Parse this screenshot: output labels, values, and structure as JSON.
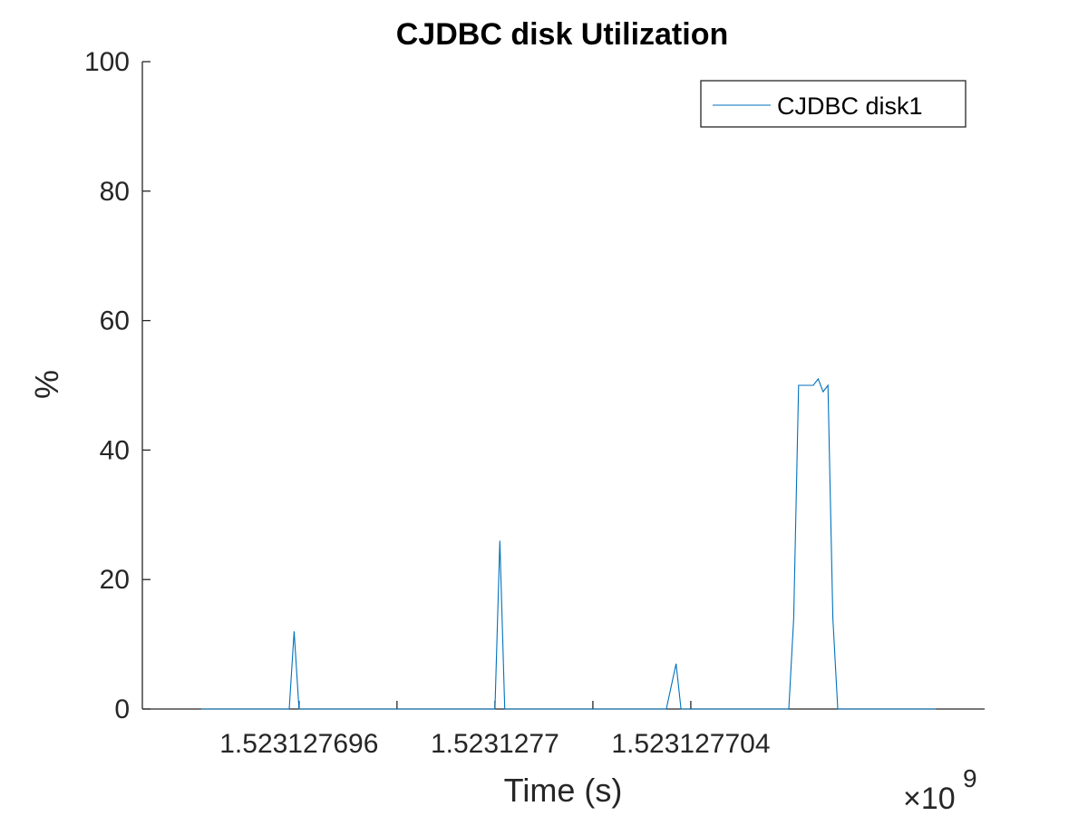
{
  "chart_data": {
    "type": "line",
    "title": "CJDBC disk Utilization",
    "xlabel": "Time (s)",
    "ylabel": "%",
    "x_exponent_label": "×10",
    "x_exponent_power": "9",
    "x_unit_scale": 1000000000,
    "xlim": [
      1.5231276928,
      1.52312771
    ],
    "ylim": [
      0,
      100
    ],
    "yticks": [
      0,
      20,
      40,
      60,
      80,
      100
    ],
    "ytick_labels": [
      "0",
      "20",
      "40",
      "60",
      "80",
      "100"
    ],
    "xticks": [
      1.523127696,
      1.5231277,
      1.523127704
    ],
    "xtick_labels": [
      "1.523127696",
      "1.5231277",
      "1.523127704"
    ],
    "grid": false,
    "legend_position": "top-right",
    "colors": {
      "series": "#0072BD",
      "axis": "#262626"
    },
    "series": [
      {
        "name": "CJDBC disk1",
        "x": [
          1.523127694,
          1.5231276955,
          1.5231276958,
          1.5231276959,
          1.523127696,
          1.5231276961,
          1.523127699,
          1.5231277,
          1.5231277001,
          1.5231277002,
          1.5231277003,
          1.5231277005,
          1.5231277035,
          1.5231277037,
          1.5231277038,
          1.523127704,
          1.5231277041,
          1.523127706,
          1.5231277061,
          1.5231277062,
          1.5231277063,
          1.5231277065,
          1.5231277066,
          1.5231277067,
          1.5231277068,
          1.5231277069,
          1.523127707,
          1.5231277071,
          1.5231277072,
          1.5231277073,
          1.523127709
        ],
        "y": [
          0,
          0,
          0,
          12,
          0,
          0,
          0,
          0,
          26,
          0,
          0,
          0,
          0,
          7,
          0,
          0,
          0,
          0,
          14,
          50,
          50,
          50,
          51,
          49,
          50,
          14,
          0,
          0,
          0,
          0,
          0
        ]
      }
    ]
  }
}
